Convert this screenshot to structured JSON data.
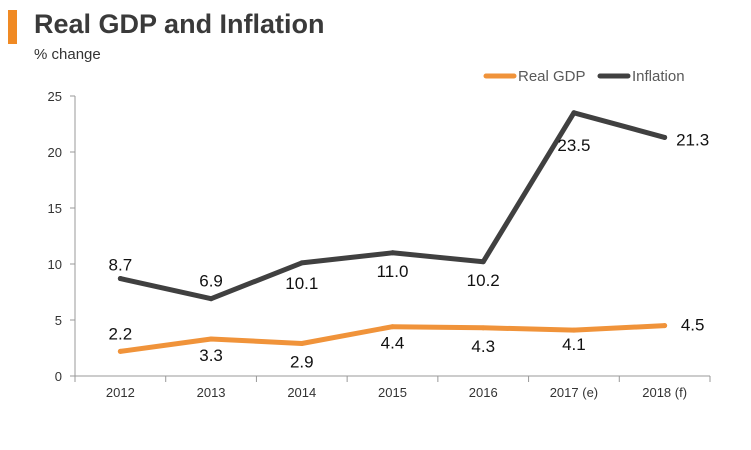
{
  "colors": {
    "accent": "#f08a24",
    "gdp": "#f0933a",
    "inflation": "#404040",
    "axis": "#999999"
  },
  "chart_data": {
    "type": "line",
    "title": "Real GDP and Inflation",
    "subtitle": "% change",
    "xlabel": "",
    "ylabel": "% change",
    "categories": [
      "2012",
      "2013",
      "2014",
      "2015",
      "2016",
      "2017 (e)",
      "2018 (f)"
    ],
    "ylim": [
      0,
      25
    ],
    "yticks": [
      0,
      5,
      10,
      15,
      20,
      25
    ],
    "ytick_labels": [
      "0",
      "5",
      "10",
      "15",
      "20",
      "25"
    ],
    "grid": false,
    "legend_position": "top-right",
    "series": [
      {
        "name": "Real GDP",
        "values": [
          2.2,
          3.3,
          2.9,
          4.4,
          4.3,
          4.1,
          4.5
        ],
        "labels": [
          "2.2",
          "3.3",
          "2.9",
          "4.4",
          "4.3",
          "4.1",
          "4.5"
        ]
      },
      {
        "name": "Inflation",
        "values": [
          8.7,
          6.9,
          10.1,
          11.0,
          10.2,
          23.5,
          21.3
        ],
        "labels": [
          "8.7",
          "6.9",
          "10.1",
          "11.0",
          "10.2",
          "23.5",
          "21.3"
        ]
      }
    ]
  }
}
